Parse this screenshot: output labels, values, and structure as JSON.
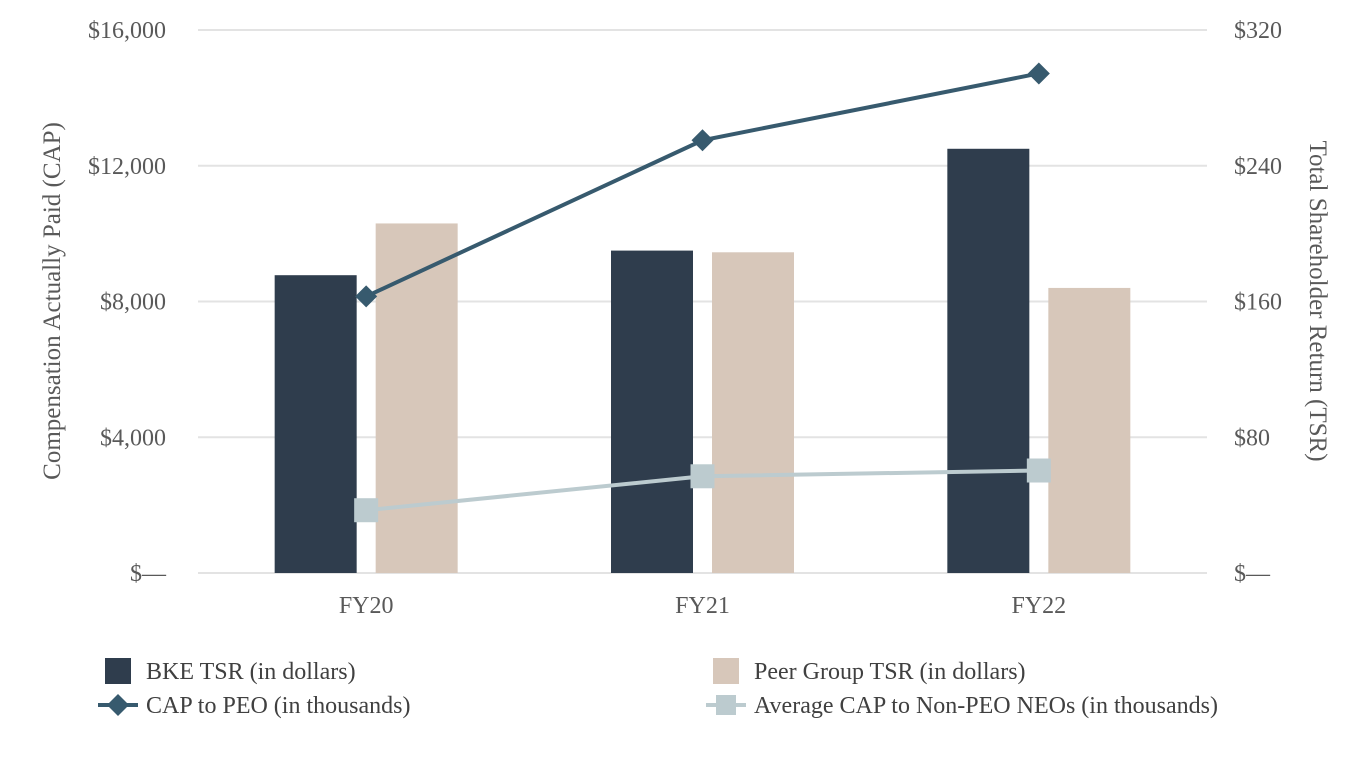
{
  "chart_data": {
    "type": "bar",
    "categories": [
      "FY20",
      "FY21",
      "FY22"
    ],
    "left_axis": {
      "label": "Compensation Actually Paid (CAP)",
      "ylim": [
        0,
        16000
      ],
      "ticks": [
        0,
        4000,
        8000,
        12000,
        16000
      ],
      "tick_labels": [
        "$—",
        "$4,000",
        "$8,000",
        "$12,000",
        "$16,000"
      ]
    },
    "right_axis": {
      "label": "Total Shareholder Return (TSR)",
      "ylim": [
        0,
        320
      ],
      "ticks": [
        0,
        80,
        160,
        240,
        320
      ],
      "tick_labels": [
        "$—",
        "$80",
        "$160",
        "$240",
        "$320"
      ]
    },
    "series": [
      {
        "name": "BKE TSR (in dollars)",
        "kind": "bar",
        "axis": "right",
        "color": "#2f3d4d",
        "values": [
          175.5,
          190,
          250
        ]
      },
      {
        "name": "Peer Group TSR (in dollars)",
        "kind": "bar",
        "axis": "right",
        "color": "#d7c7ba",
        "values": [
          206,
          189,
          168
        ]
      },
      {
        "name": "CAP to PEO (in thousands)",
        "kind": "line",
        "axis": "left",
        "marker": "diamond",
        "color": "#375a6e",
        "values": [
          8150,
          12750,
          14720
        ]
      },
      {
        "name": "Average CAP to Non-PEO NEOs (in thousands)",
        "kind": "line",
        "axis": "left",
        "marker": "square",
        "color": "#bccbcf",
        "values": [
          1850,
          2850,
          3020
        ]
      }
    ],
    "grid": true,
    "legend": "bottom"
  }
}
